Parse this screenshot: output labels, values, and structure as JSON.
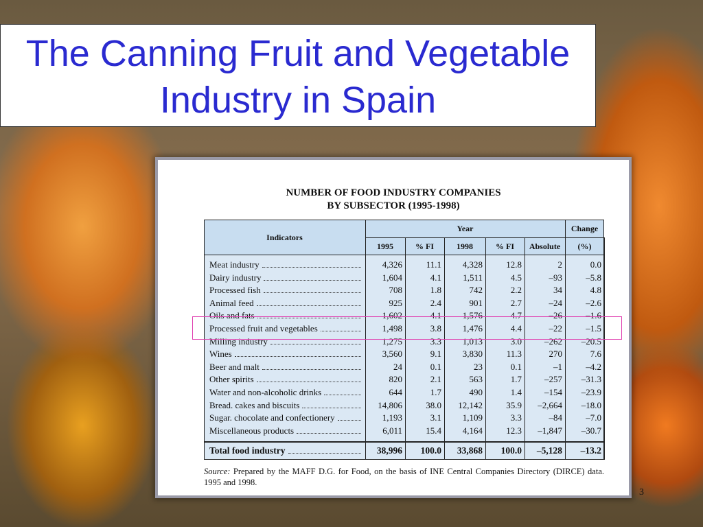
{
  "slide": {
    "title": "The Canning Fruit and Vegetable Industry in Spain",
    "page_number": "3",
    "table": {
      "title": [
        "NUMBER OF FOOD INDUSTRY COMPANIES",
        "BY SUBSECTOR (1995-1998)"
      ],
      "header": {
        "indicators": "Indicators",
        "year": "Year",
        "change": "Change",
        "sub": [
          "1995",
          "% FI",
          "1998",
          "% FI",
          "Absolute",
          "(%)"
        ]
      },
      "rows": [
        [
          "Meat industry",
          "4,326",
          "11.1",
          "4,328",
          "12.8",
          "2",
          "0.0"
        ],
        [
          "Dairy industry",
          "1,604",
          "4.1",
          "1,511",
          "4.5",
          "–93",
          "–5.8"
        ],
        [
          "Processed fish",
          "708",
          "1.8",
          "742",
          "2.2",
          "34",
          "4.8"
        ],
        [
          "Animal feed",
          "925",
          "2.4",
          "901",
          "2.7",
          "–24",
          "–2.6"
        ],
        [
          "Oils and fats",
          "1,602",
          "4.1",
          "1,576",
          "4.7",
          "–26",
          "–1.6"
        ],
        [
          "Processed fruit and vegetables",
          "1,498",
          "3.8",
          "1,476",
          "4.4",
          "–22",
          "–1.5"
        ],
        [
          "Milling industry",
          "1,275",
          "3.3",
          "1,013",
          "3.0",
          "–262",
          "–20.5"
        ],
        [
          "Wines",
          "3,560",
          "9.1",
          "3,830",
          "11.3",
          "270",
          "7.6"
        ],
        [
          "Beer and malt",
          "24",
          "0.1",
          "23",
          "0.1",
          "–1",
          "–4.2"
        ],
        [
          "Other spirits",
          "820",
          "2.1",
          "563",
          "1.7",
          "–257",
          "–31.3"
        ],
        [
          "Water and non-alcoholic drinks",
          "644",
          "1.7",
          "490",
          "1.4",
          "–154",
          "–23.9"
        ],
        [
          "Bread. cakes and biscuits",
          "14,806",
          "38.0",
          "12,142",
          "35.9",
          "–2,664",
          "–18.0"
        ],
        [
          "Sugar. chocolate and confectionery",
          "1,193",
          "3.1",
          "1,109",
          "3.3",
          "–84",
          "–7.0"
        ],
        [
          "Miscellaneous products",
          "6,011",
          "15.4",
          "4,164",
          "12.3",
          "–1,847",
          "–30.7"
        ]
      ],
      "total": [
        "Total food industry",
        "38,996",
        "100.0",
        "33,868",
        "100.0",
        "–5,128",
        "–13.2"
      ],
      "source": {
        "label": "Source:",
        "text": "Prepared by the MAFF D.G. for Food, on the basis of INE Central Companies Directory (DIRCE) data. 1995 and 1998."
      }
    }
  }
}
